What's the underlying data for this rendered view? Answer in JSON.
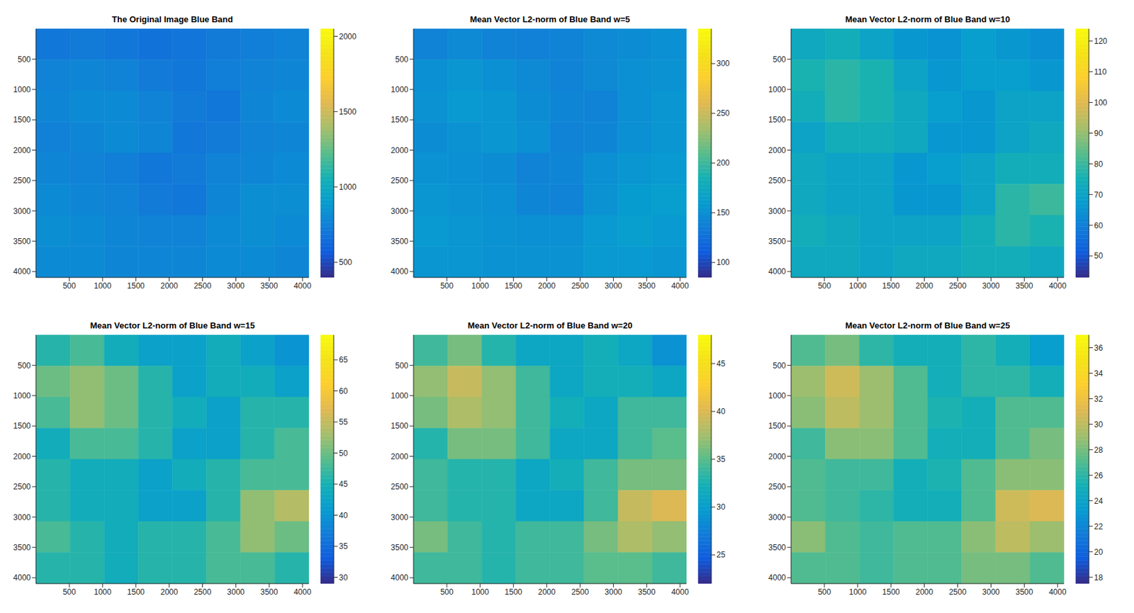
{
  "chart_data": [
    {
      "type": "heatmap",
      "title": "The Original Image Blue Band",
      "xlim": [
        0,
        4096
      ],
      "ylim": [
        0,
        4096
      ],
      "xticks": [
        500,
        1000,
        1500,
        2000,
        2500,
        3000,
        3500,
        4000
      ],
      "yticks": [
        500,
        1000,
        1500,
        2000,
        2500,
        3000,
        3500,
        4000
      ],
      "cells": [
        [
          700,
          720,
          700,
          680,
          690,
          720,
          740,
          760
        ],
        [
          760,
          780,
          760,
          720,
          700,
          740,
          760,
          780
        ],
        [
          780,
          800,
          800,
          760,
          720,
          700,
          780,
          800
        ],
        [
          750,
          780,
          800,
          780,
          700,
          720,
          760,
          780
        ],
        [
          780,
          760,
          740,
          700,
          720,
          760,
          780,
          800
        ],
        [
          800,
          780,
          760,
          720,
          700,
          780,
          820,
          820
        ],
        [
          820,
          800,
          780,
          760,
          760,
          800,
          820,
          800
        ],
        [
          800,
          800,
          780,
          780,
          780,
          800,
          800,
          780
        ]
      ],
      "colorbar": {
        "range": [
          400,
          2050
        ],
        "ticks": [
          500,
          1000,
          1500,
          2000
        ]
      }
    },
    {
      "type": "heatmap",
      "title": "Mean Vector L2-norm of Blue Band w=5",
      "xlim": [
        0,
        4096
      ],
      "ylim": [
        0,
        4096
      ],
      "xticks": [
        500,
        1000,
        1500,
        2000,
        2500,
        3000,
        3500,
        4000
      ],
      "yticks": [
        500,
        1000,
        1500,
        2000,
        2500,
        3000,
        3500,
        4000
      ],
      "cells": [
        [
          140,
          145,
          140,
          138,
          140,
          145,
          148,
          150
        ],
        [
          150,
          155,
          150,
          145,
          140,
          145,
          150,
          152
        ],
        [
          152,
          158,
          155,
          148,
          142,
          140,
          150,
          155
        ],
        [
          148,
          152,
          155,
          150,
          140,
          142,
          150,
          155
        ],
        [
          152,
          150,
          148,
          140,
          142,
          150,
          155,
          158
        ],
        [
          155,
          152,
          150,
          142,
          140,
          152,
          160,
          162
        ],
        [
          158,
          155,
          152,
          150,
          150,
          158,
          162,
          158
        ],
        [
          155,
          155,
          152,
          152,
          152,
          158,
          158,
          155
        ]
      ],
      "colorbar": {
        "range": [
          85,
          335
        ],
        "ticks": [
          100,
          150,
          200,
          250,
          300
        ]
      }
    },
    {
      "type": "heatmap",
      "title": "Mean Vector L2-norm of Blue Band w=10",
      "xlim": [
        0,
        4096
      ],
      "ylim": [
        0,
        4096
      ],
      "xticks": [
        500,
        1000,
        1500,
        2000,
        2500,
        3000,
        3500,
        4000
      ],
      "yticks": [
        500,
        1000,
        1500,
        2000,
        2500,
        3000,
        3500,
        4000
      ],
      "cells": [
        [
          72,
          74,
          70,
          66,
          65,
          68,
          66,
          64
        ],
        [
          76,
          78,
          76,
          70,
          66,
          68,
          68,
          66
        ],
        [
          74,
          78,
          76,
          72,
          68,
          66,
          70,
          70
        ],
        [
          70,
          74,
          74,
          72,
          66,
          66,
          70,
          72
        ],
        [
          72,
          70,
          70,
          66,
          68,
          70,
          74,
          74
        ],
        [
          72,
          70,
          70,
          66,
          66,
          70,
          78,
          80
        ],
        [
          74,
          72,
          70,
          70,
          70,
          74,
          78,
          76
        ],
        [
          72,
          72,
          70,
          72,
          72,
          74,
          74,
          72
        ]
      ],
      "colorbar": {
        "range": [
          43,
          124
        ],
        "ticks": [
          50,
          60,
          70,
          80,
          90,
          100,
          110,
          120
        ]
      }
    },
    {
      "type": "heatmap",
      "title": "Mean Vector L2-norm of Blue Band w=15",
      "xlim": [
        0,
        4096
      ],
      "ylim": [
        0,
        4096
      ],
      "xticks": [
        500,
        1000,
        1500,
        2000,
        2500,
        3000,
        3500,
        4000
      ],
      "yticks": [
        500,
        1000,
        1500,
        2000,
        2500,
        3000,
        3500,
        4000
      ],
      "cells": [
        [
          46,
          48,
          44,
          42,
          42,
          44,
          42,
          40
        ],
        [
          50,
          52,
          50,
          46,
          42,
          44,
          44,
          42
        ],
        [
          48,
          52,
          50,
          46,
          44,
          42,
          46,
          46
        ],
        [
          44,
          48,
          48,
          46,
          42,
          42,
          46,
          48
        ],
        [
          46,
          44,
          44,
          42,
          44,
          46,
          48,
          48
        ],
        [
          46,
          44,
          44,
          42,
          42,
          46,
          52,
          54
        ],
        [
          48,
          46,
          44,
          46,
          46,
          48,
          52,
          50
        ],
        [
          46,
          46,
          44,
          46,
          46,
          48,
          48,
          46
        ]
      ],
      "colorbar": {
        "range": [
          29,
          69
        ],
        "ticks": [
          30,
          35,
          40,
          45,
          50,
          55,
          60,
          65
        ]
      }
    },
    {
      "type": "heatmap",
      "title": "Mean Vector L2-norm of Blue Band w=20",
      "xlim": [
        0,
        4096
      ],
      "ylim": [
        0,
        4096
      ],
      "xticks": [
        500,
        1000,
        1500,
        2000,
        2500,
        3000,
        3500,
        4000
      ],
      "yticks": [
        500,
        1000,
        1500,
        2000,
        2500,
        3000,
        3500,
        4000
      ],
      "cells": [
        [
          34,
          36,
          33,
          31,
          31,
          32,
          31,
          29
        ],
        [
          37,
          39,
          37,
          34,
          31,
          32,
          32,
          31
        ],
        [
          36,
          38,
          37,
          34,
          32,
          31,
          34,
          34
        ],
        [
          33,
          36,
          36,
          34,
          31,
          31,
          34,
          35
        ],
        [
          34,
          33,
          33,
          31,
          32,
          34,
          36,
          36
        ],
        [
          34,
          33,
          33,
          31,
          31,
          34,
          39,
          40
        ],
        [
          36,
          34,
          33,
          34,
          34,
          36,
          38,
          37
        ],
        [
          34,
          34,
          33,
          34,
          34,
          35,
          35,
          34
        ]
      ],
      "colorbar": {
        "range": [
          22,
          48
        ],
        "ticks": [
          25,
          30,
          35,
          40,
          45
        ]
      }
    },
    {
      "type": "heatmap",
      "title": "Mean Vector L2-norm of Blue Band w=25",
      "xlim": [
        0,
        4096
      ],
      "ylim": [
        0,
        4096
      ],
      "xticks": [
        500,
        1000,
        1500,
        2000,
        2500,
        3000,
        3500,
        4000
      ],
      "yticks": [
        500,
        1000,
        1500,
        2000,
        2500,
        3000,
        3500,
        4000
      ],
      "cells": [
        [
          27,
          28,
          26,
          25,
          25,
          26,
          25,
          23.5
        ],
        [
          29,
          30.5,
          29,
          27,
          25,
          26,
          26,
          25
        ],
        [
          28.5,
          30,
          29,
          27,
          25.5,
          25,
          27,
          27
        ],
        [
          26.5,
          28.5,
          28.5,
          27,
          25,
          25,
          27,
          28
        ],
        [
          27,
          26.5,
          26.5,
          25,
          25.5,
          27,
          28.5,
          28.5
        ],
        [
          27,
          26.5,
          26,
          25,
          25,
          27,
          30.5,
          31
        ],
        [
          28.5,
          27,
          26.5,
          27,
          27,
          28.5,
          30,
          29
        ],
        [
          27,
          27,
          26.5,
          27,
          27,
          28,
          28,
          27
        ]
      ],
      "colorbar": {
        "range": [
          17.5,
          37
        ],
        "ticks": [
          18,
          20,
          22,
          24,
          26,
          28,
          30,
          32,
          34,
          36
        ]
      }
    }
  ]
}
